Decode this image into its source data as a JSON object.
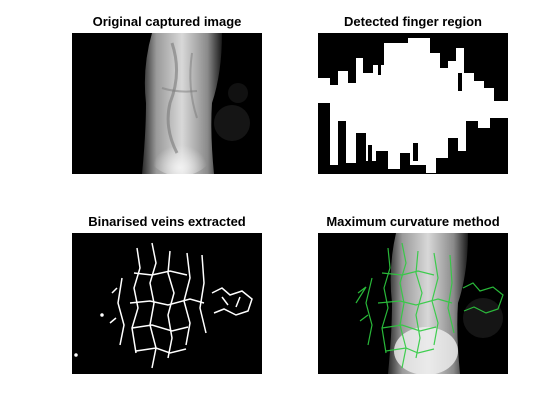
{
  "figure": {
    "panels": [
      {
        "title": "Original captured image",
        "image": "grayscale-finger-nir-image"
      },
      {
        "title": "Detected finger region",
        "image": "binary-finger-mask"
      },
      {
        "title": "Binarised veins extracted",
        "image": "binary-vein-pattern"
      },
      {
        "title": "Maximum curvature method",
        "image": "finger-with-green-vein-overlay"
      }
    ],
    "colors": {
      "background": "#ffffff",
      "image_background": "#000000",
      "vein_overlay": "#2ecc40"
    }
  }
}
